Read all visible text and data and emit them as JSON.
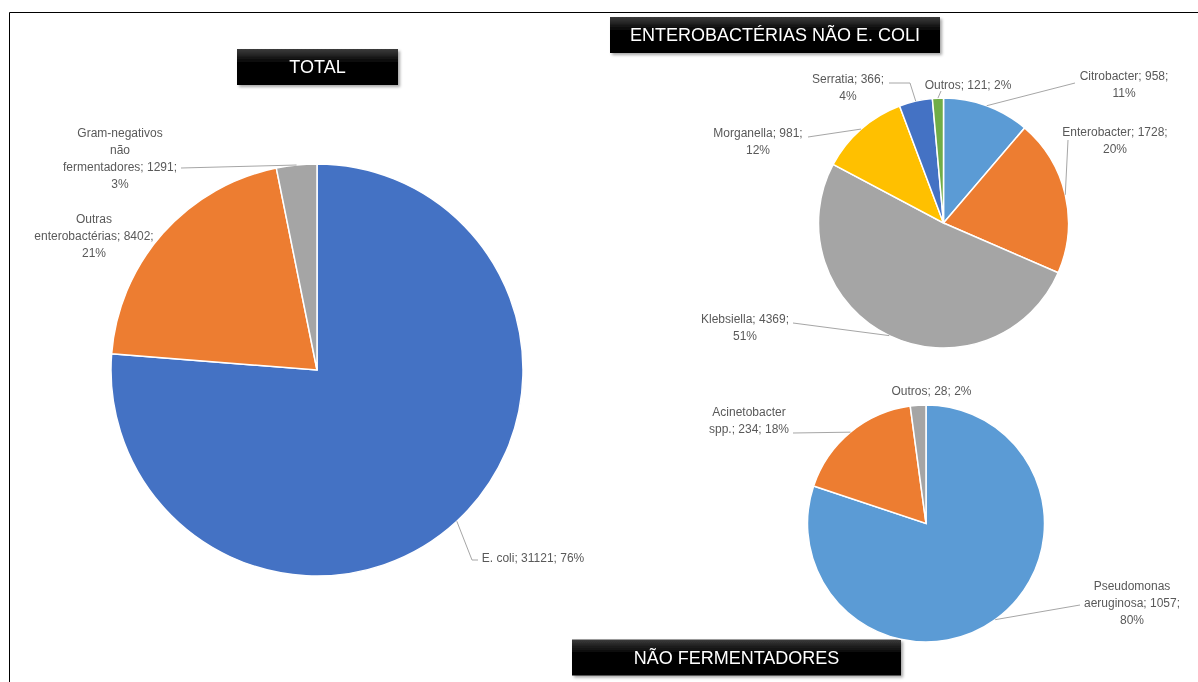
{
  "chart_data": [
    {
      "type": "pie",
      "title": "TOTAL",
      "categories": [
        "E. coli",
        "Outras enterobactérias",
        "Gram-negativos não fermentadores"
      ],
      "values": [
        31121,
        8402,
        1291
      ],
      "colors": [
        "#4472c4",
        "#ed7d31",
        "#a5a5a5"
      ],
      "value_labels": [
        "31121; 76%",
        "8402; 21%",
        "1291; 3%"
      ]
    },
    {
      "type": "pie",
      "title": "ENTEROBACTÉRIAS NÃO E. COLI",
      "categories": [
        "Citrobacter",
        "Enterobacter",
        "Klebsiella",
        "Morganella",
        "Serratia",
        "Outros"
      ],
      "values": [
        958,
        1728,
        4369,
        981,
        366,
        121
      ],
      "colors": [
        "#5b9bd5",
        "#ed7d31",
        "#a5a5a5",
        "#ffc000",
        "#4472c4",
        "#70ad47"
      ],
      "value_labels": [
        "958; 11%",
        "1728; 20%",
        "4369; 51%",
        "981; 12%",
        "366; 4%",
        "121; 2%"
      ]
    },
    {
      "type": "pie",
      "title": "NÃO FERMENTADORES",
      "categories": [
        "Pseudomonas aeruginosa",
        "Acinetobacter spp.",
        "Outros"
      ],
      "values": [
        1057,
        234,
        28
      ],
      "colors": [
        "#5b9bd5",
        "#ed7d31",
        "#a5a5a5"
      ],
      "value_labels": [
        "1057; 80%",
        "234; 18%",
        "28; 2%"
      ]
    }
  ]
}
